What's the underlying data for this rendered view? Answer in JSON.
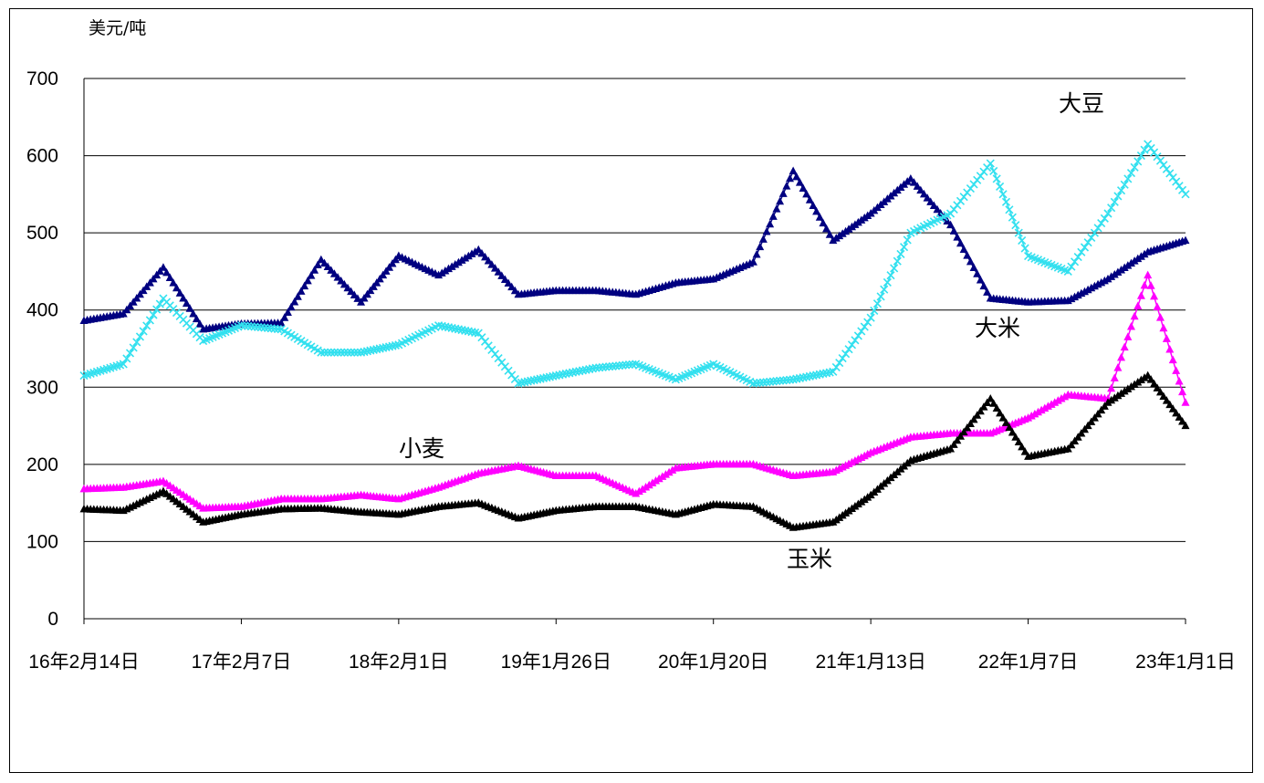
{
  "chart_data": {
    "type": "line",
    "title": "",
    "ylabel": "美元/吨",
    "xlabel": "",
    "ylim": [
      0,
      700
    ],
    "yticks": [
      0,
      100,
      200,
      300,
      400,
      500,
      600,
      700
    ],
    "x_tick_labels": [
      "16年2月14日",
      "17年2月7日",
      "18年2月1日",
      "19年1月26日",
      "20年1月20日",
      "21年1月13日",
      "22年1月7日",
      "23年1月1日"
    ],
    "grid": "horizontal",
    "legend": "none",
    "x": [
      "2016-02-14",
      "2016-05-14",
      "2016-08-13",
      "2016-11-12",
      "2017-02-07",
      "2017-05-09",
      "2017-08-08",
      "2017-11-07",
      "2018-02-01",
      "2018-05-03",
      "2018-08-02",
      "2018-11-01",
      "2019-01-26",
      "2019-04-27",
      "2019-07-27",
      "2019-10-26",
      "2020-01-20",
      "2020-04-20",
      "2020-07-20",
      "2020-10-19",
      "2021-01-13",
      "2021-04-14",
      "2021-07-14",
      "2021-10-13",
      "2022-01-07",
      "2022-04-08",
      "2022-07-08",
      "2022-10-07",
      "2023-01-01"
    ],
    "series": [
      {
        "name": "大豆",
        "color": "#000080",
        "marker": "triangle",
        "values": [
          386,
          395,
          455,
          375,
          382,
          383,
          465,
          410,
          470,
          445,
          478,
          420,
          425,
          425,
          420,
          435,
          440,
          462,
          580,
          490,
          525,
          570,
          510,
          415,
          410,
          412,
          440,
          475,
          490
        ]
      },
      {
        "name": "大米",
        "color": "#33e0ef",
        "marker": "x",
        "values": [
          315,
          330,
          415,
          360,
          380,
          375,
          345,
          345,
          355,
          380,
          370,
          305,
          315,
          325,
          330,
          310,
          330,
          305,
          310,
          320,
          390,
          500,
          525,
          590,
          470,
          450,
          525,
          615,
          550
        ]
      },
      {
        "name": "小麦",
        "color": "#ff00ff",
        "marker": "triangle",
        "values": [
          168,
          170,
          178,
          143,
          145,
          155,
          155,
          160,
          155,
          170,
          188,
          198,
          185,
          185,
          162,
          195,
          200,
          200,
          185,
          190,
          215,
          235,
          240,
          240,
          260,
          290,
          285,
          445,
          280
        ]
      },
      {
        "name": "玉米",
        "color": "#000000",
        "marker": "triangle",
        "values": [
          142,
          140,
          165,
          125,
          135,
          142,
          143,
          138,
          135,
          145,
          150,
          130,
          140,
          145,
          145,
          135,
          148,
          145,
          118,
          125,
          160,
          205,
          220,
          285,
          210,
          220,
          280,
          315,
          250
        ]
      }
    ],
    "annotations": [
      {
        "text": "大豆",
        "series": "大豆"
      },
      {
        "text": "大米",
        "series": "大米"
      },
      {
        "text": "小麦",
        "series": "小麦"
      },
      {
        "text": "玉米",
        "series": "玉米"
      }
    ]
  }
}
